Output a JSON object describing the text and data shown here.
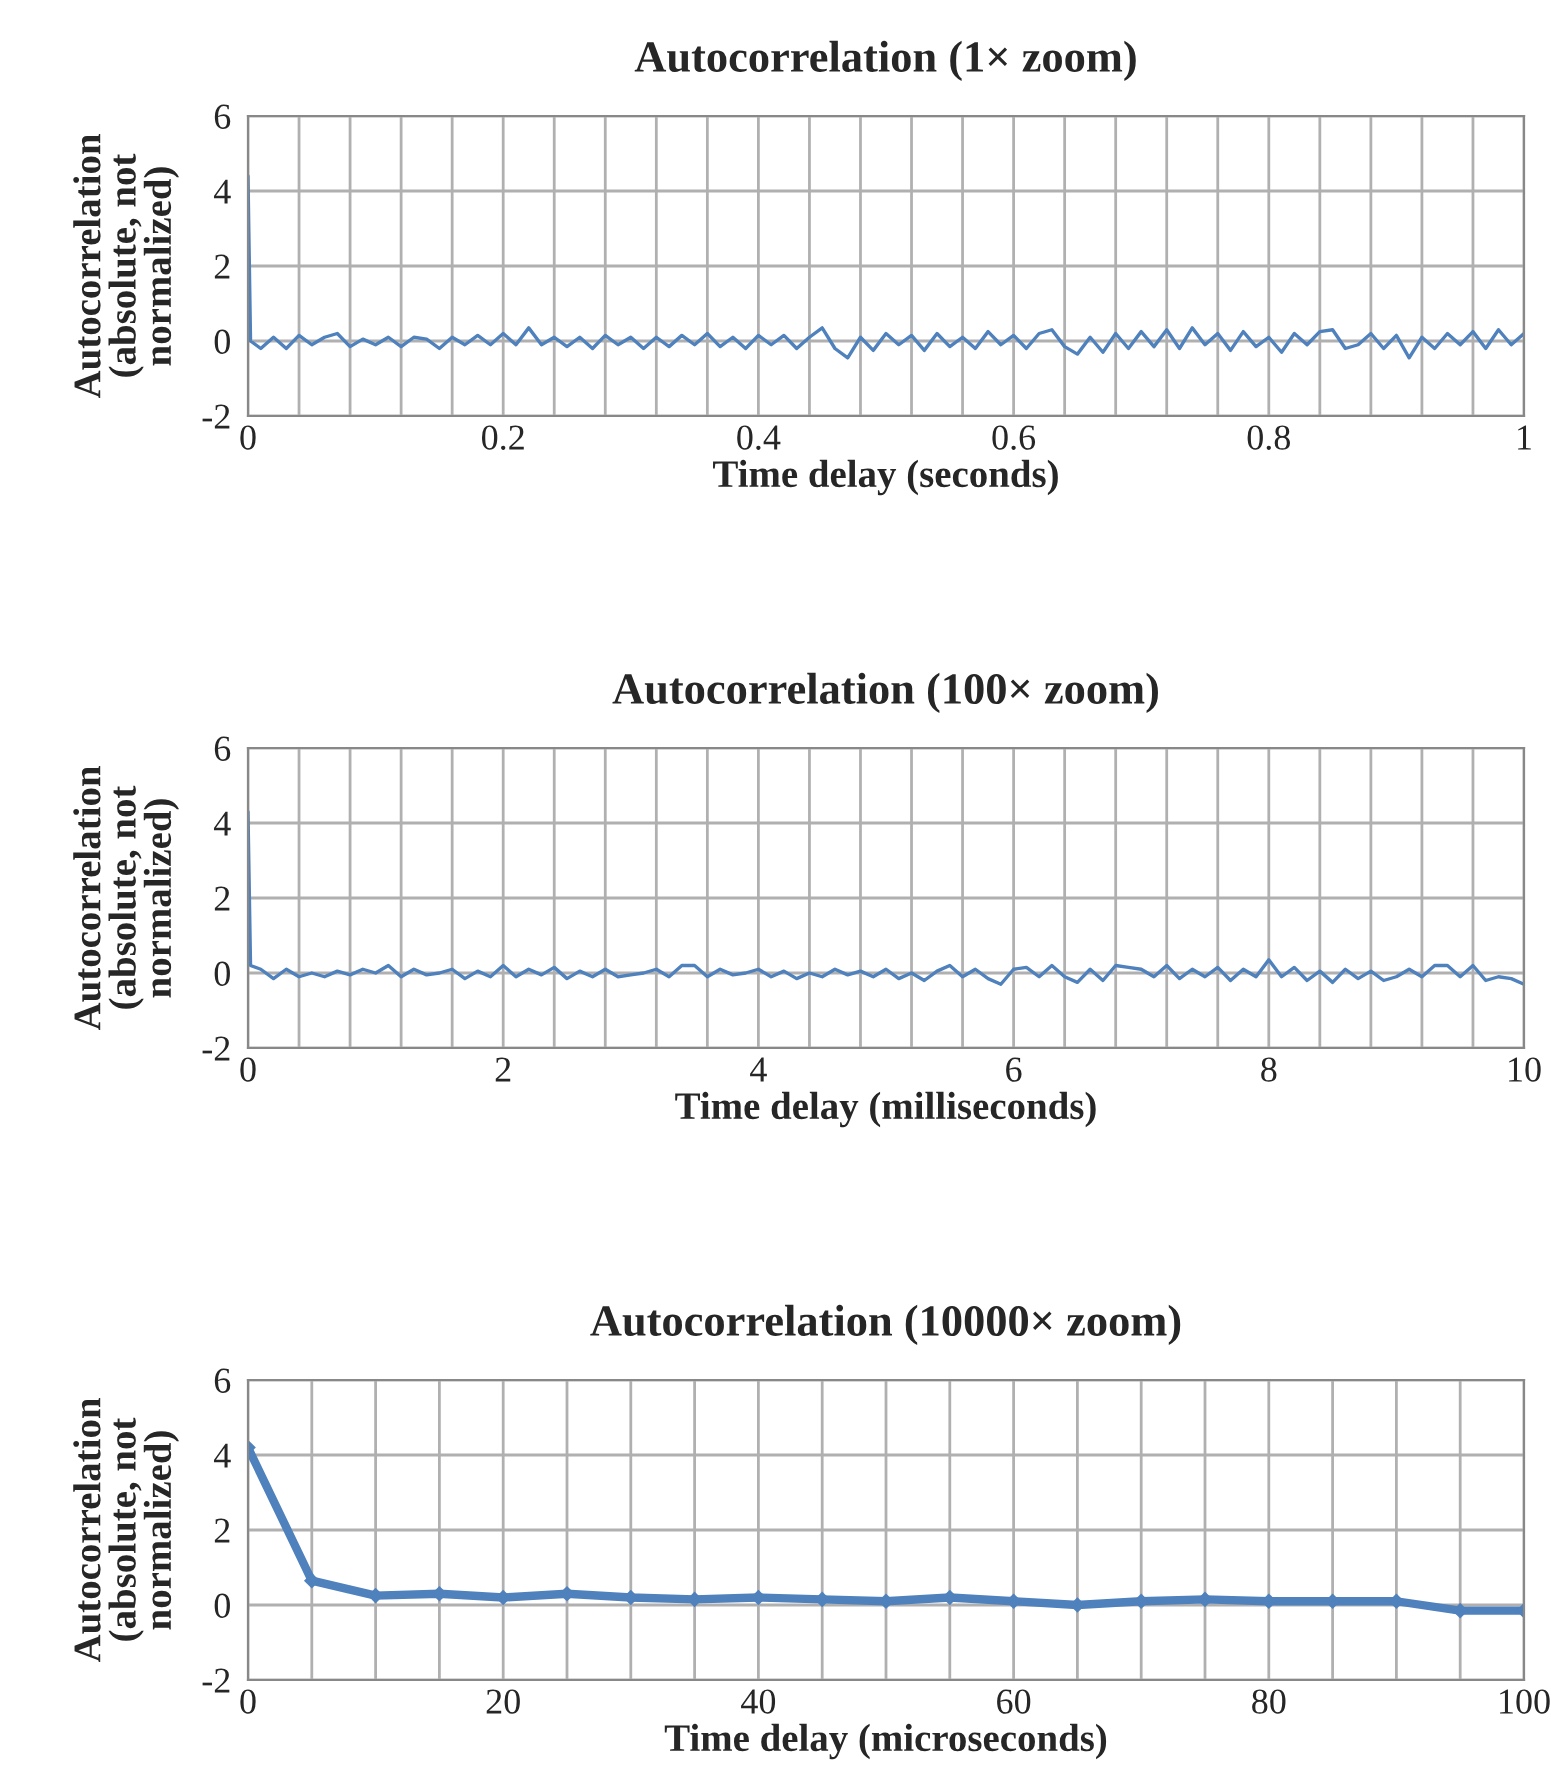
{
  "chart_data": [
    {
      "type": "line",
      "title": "Autocorrelation (1× zoom)",
      "xlabel": "Time delay (seconds)",
      "ylabel": "Autocorrelation\n(absolute, not\nnormalized)",
      "xlim": [
        0,
        1
      ],
      "ylim": [
        -2,
        6
      ],
      "xticks": [
        0,
        {
          "value": 0.04,
          "label": null
        },
        {
          "value": 0.08,
          "label": null
        },
        {
          "value": 0.12,
          "label": null
        },
        {
          "value": 0.16,
          "label": null
        },
        0.2,
        {
          "value": 0.24,
          "label": null
        },
        {
          "value": 0.28,
          "label": null
        },
        {
          "value": 0.32,
          "label": null
        },
        {
          "value": 0.36,
          "label": null
        },
        0.4,
        {
          "value": 0.44,
          "label": null
        },
        {
          "value": 0.48,
          "label": null
        },
        {
          "value": 0.52,
          "label": null
        },
        {
          "value": 0.56,
          "label": null
        },
        0.6,
        {
          "value": 0.64,
          "label": null
        },
        {
          "value": 0.68,
          "label": null
        },
        {
          "value": 0.72,
          "label": null
        },
        {
          "value": 0.76,
          "label": null
        },
        0.8,
        {
          "value": 0.84,
          "label": null
        },
        {
          "value": 0.88,
          "label": null
        },
        {
          "value": 0.92,
          "label": null
        },
        {
          "value": 0.96,
          "label": null
        },
        1
      ],
      "yticks": [
        -2,
        0,
        2,
        4,
        6
      ],
      "grid": true,
      "marker": "none",
      "line_style": "solid",
      "series": [
        {
          "color": "#4f81bd",
          "x": [
            0,
            0.002,
            0.01,
            0.02,
            0.03,
            0.04,
            0.05,
            0.06,
            0.07,
            0.08,
            0.09,
            0.1,
            0.11,
            0.12,
            0.13,
            0.14,
            0.15,
            0.16,
            0.17,
            0.18,
            0.19,
            0.2,
            0.21,
            0.22,
            0.23,
            0.24,
            0.25,
            0.26,
            0.27,
            0.28,
            0.29,
            0.3,
            0.31,
            0.32,
            0.33,
            0.34,
            0.35,
            0.36,
            0.37,
            0.38,
            0.39,
            0.4,
            0.41,
            0.42,
            0.43,
            0.44,
            0.45,
            0.46,
            0.47,
            0.48,
            0.49,
            0.5,
            0.51,
            0.52,
            0.53,
            0.54,
            0.55,
            0.56,
            0.57,
            0.58,
            0.59,
            0.6,
            0.61,
            0.62,
            0.63,
            0.64,
            0.65,
            0.66,
            0.67,
            0.68,
            0.69,
            0.7,
            0.71,
            0.72,
            0.73,
            0.74,
            0.75,
            0.76,
            0.77,
            0.78,
            0.79,
            0.8,
            0.81,
            0.82,
            0.83,
            0.84,
            0.85,
            0.86,
            0.87,
            0.88,
            0.89,
            0.9,
            0.91,
            0.92,
            0.93,
            0.94,
            0.95,
            0.96,
            0.97,
            0.98,
            0.99,
            1
          ],
          "values": [
            4.4,
            0,
            -0.2,
            0.1,
            -0.2,
            0.15,
            -0.1,
            0.1,
            0.2,
            -0.15,
            0.05,
            -0.1,
            0.1,
            -0.15,
            0.1,
            0.05,
            -0.2,
            0.1,
            -0.1,
            0.15,
            -0.1,
            0.2,
            -0.1,
            0.35,
            -0.1,
            0.1,
            -0.15,
            0.1,
            -0.2,
            0.15,
            -0.1,
            0.1,
            -0.2,
            0.1,
            -0.15,
            0.15,
            -0.1,
            0.2,
            -0.15,
            0.1,
            -0.2,
            0.15,
            -0.1,
            0.15,
            -0.2,
            0.1,
            0.35,
            -0.2,
            -0.45,
            0.1,
            -0.25,
            0.2,
            -0.1,
            0.15,
            -0.25,
            0.2,
            -0.15,
            0.1,
            -0.2,
            0.25,
            -0.1,
            0.15,
            -0.2,
            0.2,
            0.3,
            -0.15,
            -0.35,
            0.1,
            -0.3,
            0.2,
            -0.2,
            0.25,
            -0.15,
            0.3,
            -0.2,
            0.35,
            -0.1,
            0.2,
            -0.25,
            0.25,
            -0.15,
            0.1,
            -0.3,
            0.2,
            -0.1,
            0.25,
            0.3,
            -0.2,
            -0.1,
            0.2,
            -0.2,
            0.15,
            -0.45,
            0.1,
            -0.2,
            0.2,
            -0.1,
            0.25,
            -0.2,
            0.3,
            -0.1,
            0.2
          ]
        }
      ]
    },
    {
      "type": "line",
      "title": "Autocorrelation (100× zoom)",
      "xlabel": "Time delay (milliseconds)",
      "ylabel": "Autocorrelation\n(absolute, not\nnormalized)",
      "xlim": [
        0,
        10
      ],
      "ylim": [
        -2,
        6
      ],
      "xticks": [
        0,
        {
          "value": 0.4,
          "label": null
        },
        {
          "value": 0.8,
          "label": null
        },
        {
          "value": 1.2,
          "label": null
        },
        {
          "value": 1.6,
          "label": null
        },
        2,
        {
          "value": 2.4,
          "label": null
        },
        {
          "value": 2.8,
          "label": null
        },
        {
          "value": 3.2,
          "label": null
        },
        {
          "value": 3.6,
          "label": null
        },
        4,
        {
          "value": 4.4,
          "label": null
        },
        {
          "value": 4.8,
          "label": null
        },
        {
          "value": 5.2,
          "label": null
        },
        {
          "value": 5.6,
          "label": null
        },
        6,
        {
          "value": 6.4,
          "label": null
        },
        {
          "value": 6.8,
          "label": null
        },
        {
          "value": 7.2,
          "label": null
        },
        {
          "value": 7.6,
          "label": null
        },
        8,
        {
          "value": 8.4,
          "label": null
        },
        {
          "value": 8.8,
          "label": null
        },
        {
          "value": 9.2,
          "label": null
        },
        {
          "value": 9.6,
          "label": null
        },
        10
      ],
      "yticks": [
        -2,
        0,
        2,
        4,
        6
      ],
      "grid": true,
      "marker": "none",
      "line_style": "solid",
      "series": [
        {
          "color": "#4f81bd",
          "x": [
            0,
            0.02,
            0.1,
            0.2,
            0.3,
            0.4,
            0.5,
            0.6,
            0.7,
            0.8,
            0.9,
            1.0,
            1.1,
            1.2,
            1.3,
            1.4,
            1.5,
            1.6,
            1.7,
            1.8,
            1.9,
            2.0,
            2.1,
            2.2,
            2.3,
            2.4,
            2.5,
            2.6,
            2.7,
            2.8,
            2.9,
            3.0,
            3.1,
            3.2,
            3.3,
            3.4,
            3.5,
            3.6,
            3.7,
            3.8,
            3.9,
            4.0,
            4.1,
            4.2,
            4.3,
            4.4,
            4.5,
            4.6,
            4.7,
            4.8,
            4.9,
            5.0,
            5.1,
            5.2,
            5.3,
            5.4,
            5.5,
            5.6,
            5.7,
            5.8,
            5.9,
            6.0,
            6.1,
            6.2,
            6.3,
            6.4,
            6.5,
            6.6,
            6.7,
            6.8,
            6.9,
            7.0,
            7.1,
            7.2,
            7.3,
            7.4,
            7.5,
            7.6,
            7.7,
            7.8,
            7.9,
            8.0,
            8.1,
            8.2,
            8.3,
            8.4,
            8.5,
            8.6,
            8.7,
            8.8,
            8.9,
            9.0,
            9.1,
            9.2,
            9.3,
            9.4,
            9.5,
            9.6,
            9.7,
            9.8,
            9.9,
            10
          ],
          "values": [
            4.3,
            0.2,
            0.1,
            -0.15,
            0.1,
            -0.1,
            0,
            -0.1,
            0.05,
            -0.05,
            0.1,
            0,
            0.2,
            -0.1,
            0.1,
            -0.05,
            0,
            0.1,
            -0.15,
            0.05,
            -0.1,
            0.2,
            -0.1,
            0.1,
            -0.05,
            0.15,
            -0.15,
            0.05,
            -0.1,
            0.1,
            -0.1,
            -0.05,
            0,
            0.1,
            -0.1,
            0.2,
            0.2,
            -0.1,
            0.1,
            -0.05,
            0,
            0.1,
            -0.1,
            0.05,
            -0.15,
            0,
            -0.1,
            0.1,
            -0.05,
            0.05,
            -0.1,
            0.1,
            -0.15,
            0,
            -0.2,
            0.05,
            0.2,
            -0.1,
            0.1,
            -0.15,
            -0.3,
            0.1,
            0.15,
            -0.1,
            0.2,
            -0.1,
            -0.25,
            0.1,
            -0.2,
            0.2,
            0.15,
            0.1,
            -0.1,
            0.2,
            -0.15,
            0.1,
            -0.1,
            0.15,
            -0.2,
            0.1,
            -0.1,
            0.35,
            -0.1,
            0.15,
            -0.2,
            0.05,
            -0.25,
            0.1,
            -0.15,
            0.05,
            -0.2,
            -0.1,
            0.1,
            -0.1,
            0.2,
            0.2,
            -0.1,
            0.2,
            -0.2,
            -0.1,
            -0.15,
            -0.3
          ]
        }
      ]
    },
    {
      "type": "line",
      "title": "Autocorrelation (10000× zoom)",
      "xlabel": "Time delay (microseconds)",
      "ylabel": "Autocorrelation\n(absolute, not\nnormalized)",
      "xlim": [
        0,
        100
      ],
      "ylim": [
        -2,
        6
      ],
      "xticks": [
        0,
        {
          "value": 5,
          "label": null
        },
        {
          "value": 10,
          "label": null
        },
        {
          "value": 15,
          "label": null
        },
        20,
        {
          "value": 25,
          "label": null
        },
        {
          "value": 30,
          "label": null
        },
        {
          "value": 35,
          "label": null
        },
        40,
        {
          "value": 45,
          "label": null
        },
        {
          "value": 50,
          "label": null
        },
        {
          "value": 55,
          "label": null
        },
        60,
        {
          "value": 65,
          "label": null
        },
        {
          "value": 70,
          "label": null
        },
        {
          "value": 75,
          "label": null
        },
        80,
        {
          "value": 85,
          "label": null
        },
        {
          "value": 90,
          "label": null
        },
        {
          "value": 95,
          "label": null
        },
        100
      ],
      "yticks": [
        -2,
        0,
        2,
        4,
        6
      ],
      "grid": true,
      "marker": "diamond",
      "line_style": "solid",
      "series": [
        {
          "color": "#4f81bd",
          "x": [
            0,
            5,
            10,
            15,
            20,
            25,
            30,
            35,
            40,
            45,
            50,
            55,
            60,
            65,
            70,
            75,
            80,
            85,
            90,
            95,
            100
          ],
          "values": [
            4.2,
            0.65,
            0.25,
            0.3,
            0.2,
            0.3,
            0.2,
            0.15,
            0.2,
            0.15,
            0.1,
            0.2,
            0.1,
            0.0,
            0.1,
            0.15,
            0.1,
            0.1,
            0.1,
            -0.15,
            -0.15
          ]
        }
      ]
    }
  ]
}
